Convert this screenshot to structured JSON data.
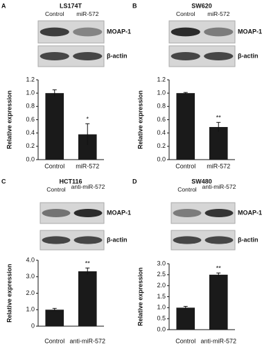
{
  "chart_data": [
    {
      "type": "bar",
      "panel": "A",
      "title": "LS174T",
      "blot_lanes": [
        "Control",
        "miR-572"
      ],
      "blot_bands": [
        "MOAP-1",
        "β-actin"
      ],
      "ylabel": "Relative expression",
      "categories": [
        "Control",
        "miR-572"
      ],
      "values": [
        1.0,
        0.38
      ],
      "errors": [
        0.05,
        0.16
      ],
      "significance": [
        null,
        "*"
      ],
      "color": "#1a1a1a",
      "ylim": [
        0,
        1.2
      ],
      "yticks": [
        {
          "value": 0,
          "label": "0.0"
        },
        {
          "value": 0.2,
          "label": "0.2"
        },
        {
          "value": 0.4,
          "label": "0.4"
        },
        {
          "value": 0.6,
          "label": "0.6"
        },
        {
          "value": 0.8,
          "label": "0.8"
        },
        {
          "value": 1,
          "label": "1.0"
        },
        {
          "value": 1.2,
          "label": "1.2"
        }
      ]
    },
    {
      "type": "bar",
      "panel": "B",
      "title": "SW620",
      "blot_lanes": [
        "Control",
        "miR-572"
      ],
      "blot_bands": [
        "MOAP-1",
        "β-actin"
      ],
      "ylabel": "Relative expression",
      "categories": [
        "Control",
        "miR-572"
      ],
      "values": [
        1.0,
        0.49
      ],
      "errors": [
        0.01,
        0.07
      ],
      "significance": [
        null,
        "**"
      ],
      "color": "#1a1a1a",
      "ylim": [
        0,
        1.2
      ],
      "yticks": [
        {
          "value": 0,
          "label": "0.0"
        },
        {
          "value": 0.2,
          "label": "0.2"
        },
        {
          "value": 0.4,
          "label": "0.4"
        },
        {
          "value": 0.6,
          "label": "0.6"
        },
        {
          "value": 0.8,
          "label": "0.8"
        },
        {
          "value": 1,
          "label": "1.0"
        },
        {
          "value": 1.2,
          "label": "1.2"
        }
      ]
    },
    {
      "type": "bar",
      "panel": "C",
      "title": "HCT116",
      "blot_lanes": [
        "Control",
        "anti-miR-572"
      ],
      "blot_bands": [
        "MOAP-1",
        "β-actin"
      ],
      "ylabel": "Relative expression",
      "categories": [
        "Control",
        "anti-miR-572"
      ],
      "values": [
        1.0,
        3.33
      ],
      "errors": [
        0.08,
        0.2
      ],
      "significance": [
        null,
        "**"
      ],
      "color": "#1a1a1a",
      "ylim": [
        0,
        4
      ],
      "yticks": [
        0,
        {
          "value": 1,
          "label": "1.0"
        },
        {
          "value": 2,
          "label": "2.0"
        },
        {
          "value": 3,
          "label": "3.0"
        },
        {
          "value": 4,
          "label": "4.0"
        }
      ]
    },
    {
      "type": "bar",
      "panel": "D",
      "title": "SW480",
      "blot_lanes": [
        "Control",
        "anti-miR-572"
      ],
      "blot_bands": [
        "MOAP-1",
        "β-actin"
      ],
      "ylabel": "Relative expression",
      "categories": [
        "Control",
        "anti-miR-572"
      ],
      "values": [
        1.0,
        2.5
      ],
      "errors": [
        0.06,
        0.08
      ],
      "significance": [
        null,
        "**"
      ],
      "color": "#1a1a1a",
      "ylim": [
        0,
        3
      ],
      "yticks": [
        {
          "value": 0,
          "label": "0.0"
        },
        {
          "value": 0.5,
          "label": "0.5"
        },
        {
          "value": 1,
          "label": "1.0"
        },
        {
          "value": 1.5,
          "label": "1.5"
        },
        {
          "value": 2,
          "label": "2.0"
        },
        {
          "value": 2.5,
          "label": "2.5"
        },
        {
          "value": 3,
          "label": "3.0"
        }
      ]
    }
  ]
}
